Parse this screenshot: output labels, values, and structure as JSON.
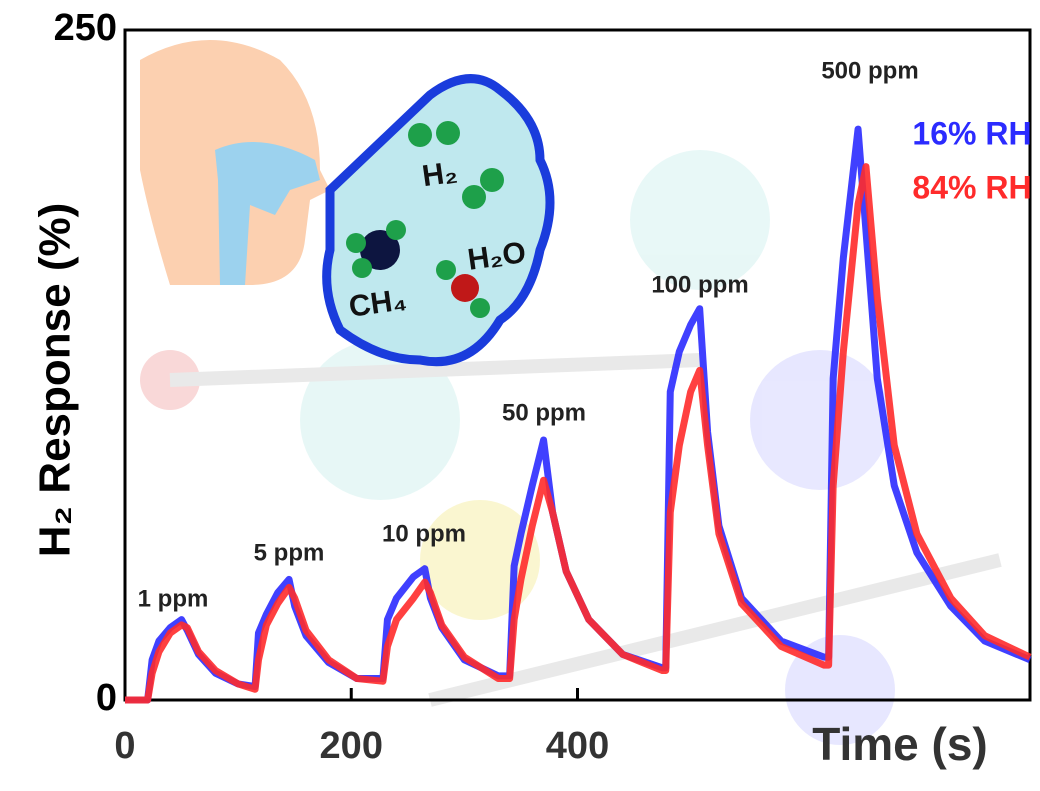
{
  "chart_data": {
    "type": "line",
    "xlabel": "Time (s)",
    "ylabel": "H₂ Response (%)",
    "x": [
      0,
      20,
      24,
      30,
      40,
      50,
      55,
      65,
      80,
      100,
      115,
      118,
      125,
      135,
      145,
      150,
      160,
      180,
      205,
      228,
      232,
      240,
      255,
      265,
      270,
      280,
      300,
      330,
      340,
      344,
      350,
      360,
      370,
      378,
      390,
      410,
      440,
      475,
      478,
      482,
      490,
      500,
      508,
      515,
      525,
      545,
      580,
      618,
      622,
      626,
      635,
      648,
      655,
      665,
      680,
      700,
      730,
      760,
      800
    ],
    "series": [
      {
        "name": "16% RH",
        "color": "#2b2bff",
        "values": [
          0,
          0,
          15,
          22,
          27,
          30,
          26,
          17,
          10,
          6,
          5,
          25,
          32,
          40,
          45,
          35,
          24,
          14,
          8,
          8,
          30,
          38,
          46,
          49,
          38,
          27,
          15,
          9,
          9,
          50,
          62,
          80,
          97,
          70,
          48,
          30,
          17,
          12,
          12,
          115,
          130,
          140,
          146,
          100,
          65,
          38,
          22,
          16,
          16,
          120,
          165,
          213,
          175,
          120,
          80,
          55,
          35,
          22,
          15
        ]
      },
      {
        "name": "84% RH",
        "color": "#ff2b2b",
        "values": [
          0,
          0,
          10,
          18,
          25,
          28,
          27,
          18,
          11,
          6,
          4,
          15,
          28,
          36,
          42,
          38,
          26,
          15,
          8,
          7,
          20,
          30,
          38,
          44,
          40,
          28,
          16,
          8,
          8,
          30,
          45,
          65,
          82,
          70,
          48,
          30,
          17,
          11,
          11,
          70,
          95,
          115,
          123,
          95,
          62,
          36,
          20,
          13,
          13,
          80,
          130,
          185,
          199,
          150,
          95,
          62,
          38,
          24,
          16
        ]
      }
    ],
    "annotations": [
      "1 ppm",
      "5 ppm",
      "10 ppm",
      "50 ppm",
      "100 ppm",
      "500 ppm"
    ],
    "inset_labels": [
      "H₂",
      "H₂O",
      "CH₄"
    ],
    "xlim": [
      0,
      800
    ],
    "xticks": [
      0,
      200,
      400
    ],
    "ylim": [
      0,
      250
    ],
    "yticks": [
      0,
      250
    ]
  }
}
